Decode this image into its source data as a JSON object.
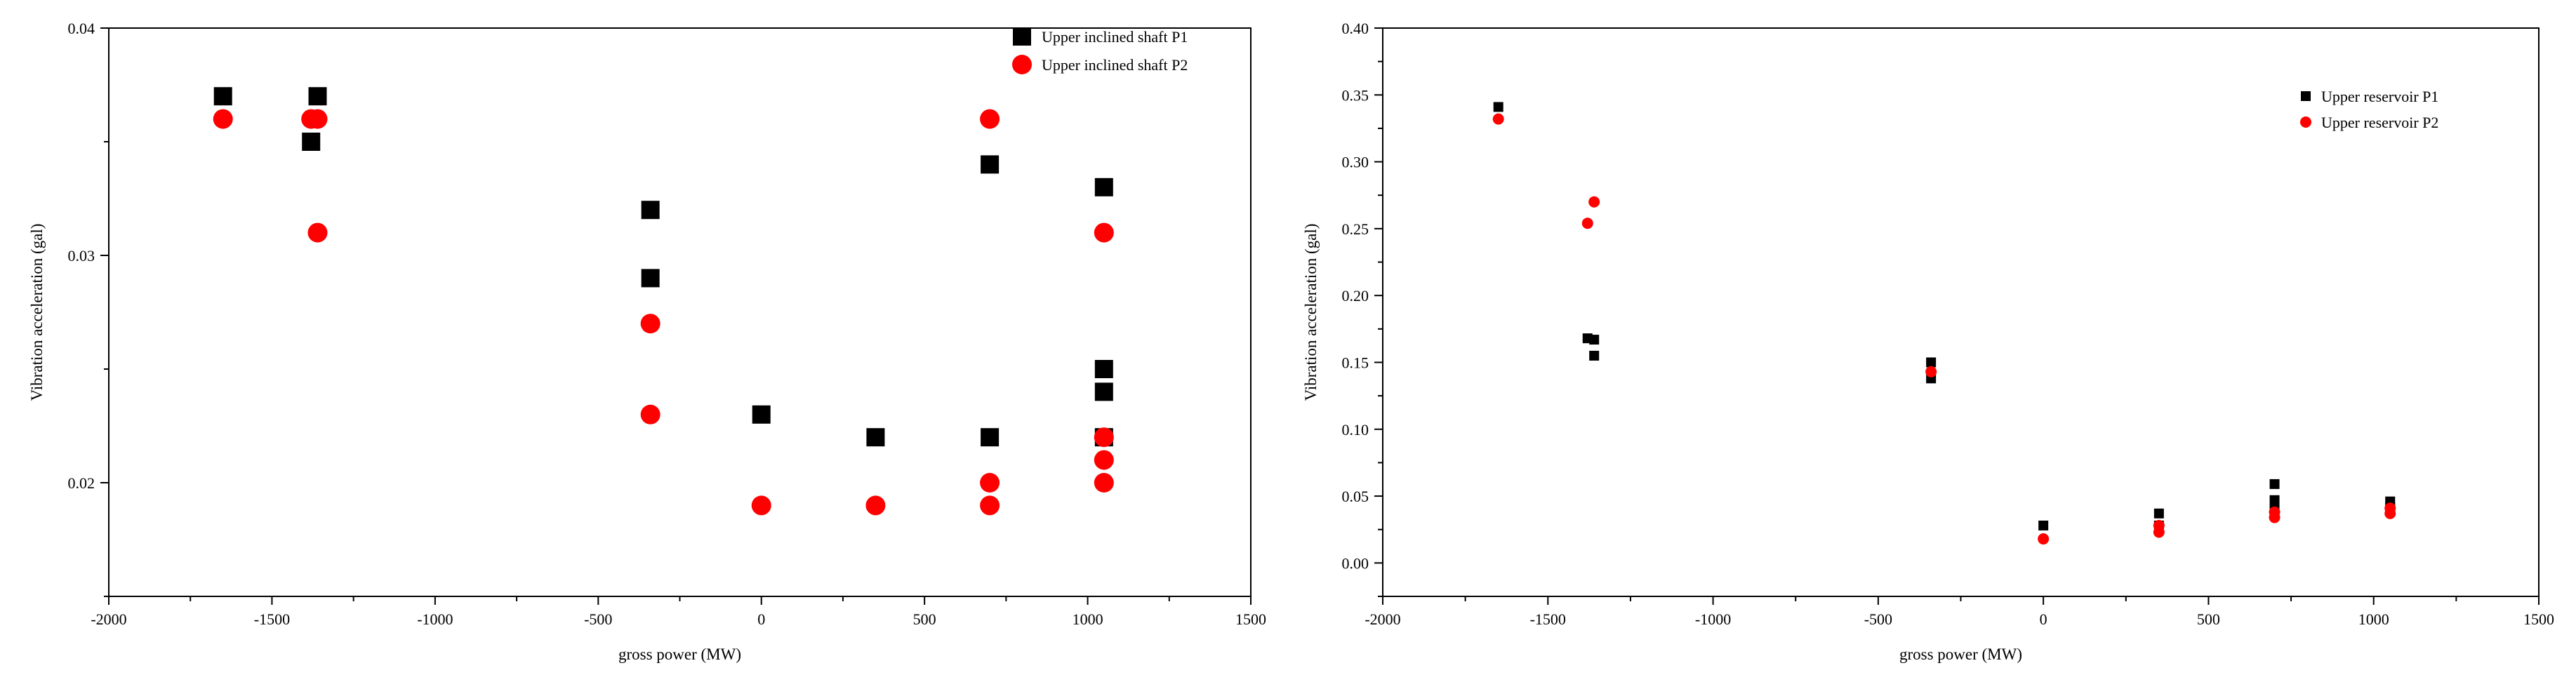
{
  "chart_data": [
    {
      "type": "scatter",
      "title": "",
      "xlabel": "gross power (MW)",
      "ylabel": "Vibration acceleration (gal)",
      "xlim": [
        -2000,
        1500
      ],
      "ylim": [
        0.015,
        0.04
      ],
      "xticks": [
        -2000,
        -1500,
        -1000,
        -500,
        0,
        500,
        1000,
        1500
      ],
      "yticks": [
        0.02,
        0.03,
        0.04
      ],
      "ytick_labels": [
        "0.02",
        "0.03",
        "0.04"
      ],
      "xtick_labels": [
        "-2000",
        "-1500",
        "-1000",
        "-500",
        "0",
        "500",
        "1000",
        "1500"
      ],
      "minor_x_step": 250,
      "minor_y_step": 0.005,
      "legend_position": "top-right",
      "grid": false,
      "series": [
        {
          "name": "Upper inclined shaft P1",
          "marker": "square",
          "color": "#000000",
          "x": [
            -1650,
            -1380,
            -1360,
            -340,
            -340,
            0,
            350,
            700,
            700,
            1050,
            1050,
            1050,
            1050
          ],
          "y": [
            0.037,
            0.035,
            0.037,
            0.032,
            0.029,
            0.023,
            0.022,
            0.034,
            0.022,
            0.033,
            0.025,
            0.024,
            0.022
          ]
        },
        {
          "name": "Upper inclined shaft P2",
          "marker": "circle",
          "color": "#ff0000",
          "x": [
            -1650,
            -1380,
            -1360,
            -1360,
            -340,
            -340,
            0,
            350,
            700,
            700,
            700,
            1050,
            1050,
            1050,
            1050
          ],
          "y": [
            0.036,
            0.036,
            0.036,
            0.031,
            0.027,
            0.023,
            0.019,
            0.019,
            0.036,
            0.02,
            0.019,
            0.031,
            0.022,
            0.021,
            0.02
          ]
        }
      ]
    },
    {
      "type": "scatter",
      "title": "",
      "xlabel": "gross power (MW)",
      "ylabel": "Vibration acceleration (gal)",
      "xlim": [
        -2000,
        1500
      ],
      "ylim": [
        -0.025,
        0.4
      ],
      "xticks": [
        -2000,
        -1500,
        -1000,
        -500,
        0,
        500,
        1000,
        1500
      ],
      "yticks": [
        0.0,
        0.05,
        0.1,
        0.15,
        0.2,
        0.25,
        0.3,
        0.35,
        0.4
      ],
      "ytick_labels": [
        "0.00",
        "0.05",
        "0.10",
        "0.15",
        "0.20",
        "0.25",
        "0.30",
        "0.35",
        "0.40"
      ],
      "xtick_labels": [
        "-2000",
        "-1500",
        "-1000",
        "-500",
        "0",
        "500",
        "1000",
        "1500"
      ],
      "minor_x_step": 250,
      "minor_y_step": 0.025,
      "legend_position": "top-right",
      "grid": false,
      "series": [
        {
          "name": "Upper reservoir P1",
          "marker": "square",
          "color": "#000000",
          "x": [
            -1650,
            -1380,
            -1360,
            -1360,
            -340,
            -340,
            0,
            350,
            350,
            700,
            700,
            700,
            1050,
            1050
          ],
          "y": [
            0.341,
            0.168,
            0.167,
            0.155,
            0.15,
            0.138,
            0.028,
            0.037,
            0.028,
            0.059,
            0.047,
            0.04,
            0.046,
            0.042
          ],
          "note": ""
        },
        {
          "name": "Upper reservoir P2",
          "marker": "circle",
          "color": "#ff0000",
          "x": [
            -1650,
            -1380,
            -1360,
            -340,
            0,
            350,
            350,
            700,
            700,
            1050,
            1050
          ],
          "y": [
            0.332,
            0.254,
            0.27,
            0.143,
            0.018,
            0.028,
            0.023,
            0.038,
            0.034,
            0.041,
            0.037
          ]
        }
      ]
    }
  ]
}
